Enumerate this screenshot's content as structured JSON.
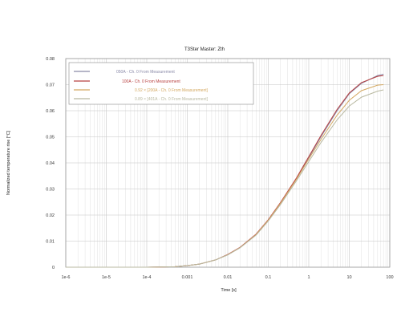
{
  "chart_data": {
    "type": "line",
    "title": "T3Ster Master: Zth",
    "xlabel": "Time [s]",
    "ylabel": "Normalized temperature rise [°C]",
    "x_scale": "log",
    "xlim": [
      1e-06,
      100
    ],
    "ylim": [
      0,
      0.08
    ],
    "x_ticks": [
      "1e-6",
      "1e-5",
      "1e-4",
      "0.001",
      "0.01",
      "0.1",
      "1",
      "10",
      "100"
    ],
    "y_ticks": [
      "0",
      "0.01",
      "0.02",
      "0.03",
      "0.04",
      "0.05",
      "0.06",
      "0.07",
      "0.08"
    ],
    "grid": true,
    "legend_position": "top-left",
    "series": [
      {
        "name": "050A - Ch. 0 From Measurement",
        "color": "#8a8aa8",
        "x": [
          1e-06,
          0.0001,
          0.0005,
          0.001,
          0.002,
          0.005,
          0.01,
          0.02,
          0.05,
          0.1,
          0.2,
          0.5,
          1,
          2,
          5,
          10,
          20,
          50,
          70
        ],
        "y": [
          0,
          0,
          0.0002,
          0.0006,
          0.0012,
          0.0028,
          0.0048,
          0.0075,
          0.0125,
          0.018,
          0.0245,
          0.034,
          0.042,
          0.05,
          0.06,
          0.0665,
          0.0705,
          0.0735,
          0.074
        ]
      },
      {
        "name": "100A - Ch. 0 From Measurement",
        "color": "#b84040",
        "x": [
          1e-06,
          0.0001,
          0.0005,
          0.001,
          0.002,
          0.005,
          0.01,
          0.02,
          0.05,
          0.1,
          0.2,
          0.5,
          1,
          2,
          5,
          10,
          20,
          50,
          70
        ],
        "y": [
          0,
          0,
          0.0002,
          0.0006,
          0.0012,
          0.0028,
          0.0049,
          0.0076,
          0.0127,
          0.0182,
          0.0248,
          0.0343,
          0.0424,
          0.0505,
          0.0605,
          0.0668,
          0.0708,
          0.0732,
          0.0735
        ]
      },
      {
        "name": "0.92 × [200A - Ch. 0 From Measurement]",
        "color": "#d4a860",
        "x": [
          1e-06,
          0.0001,
          0.0005,
          0.001,
          0.002,
          0.005,
          0.01,
          0.02,
          0.05,
          0.1,
          0.2,
          0.5,
          1,
          2,
          5,
          10,
          20,
          50,
          70
        ],
        "y": [
          0,
          0,
          0.0002,
          0.0006,
          0.0012,
          0.0028,
          0.0048,
          0.0075,
          0.0125,
          0.018,
          0.0245,
          0.0338,
          0.0415,
          0.049,
          0.0583,
          0.064,
          0.0677,
          0.0698,
          0.07
        ]
      },
      {
        "name": "0.89 × [401A - Ch. 0 From Measurement]",
        "color": "#b8b8a0",
        "x": [
          1e-06,
          0.0001,
          0.0005,
          0.001,
          0.002,
          0.005,
          0.01,
          0.02,
          0.05,
          0.1,
          0.2,
          0.5,
          1,
          2,
          5,
          10,
          20,
          50,
          70
        ],
        "y": [
          0,
          0,
          0.0002,
          0.0006,
          0.0012,
          0.0028,
          0.0047,
          0.0074,
          0.0123,
          0.0177,
          0.024,
          0.0332,
          0.0405,
          0.0478,
          0.0565,
          0.0618,
          0.0652,
          0.0675,
          0.068
        ]
      }
    ]
  }
}
